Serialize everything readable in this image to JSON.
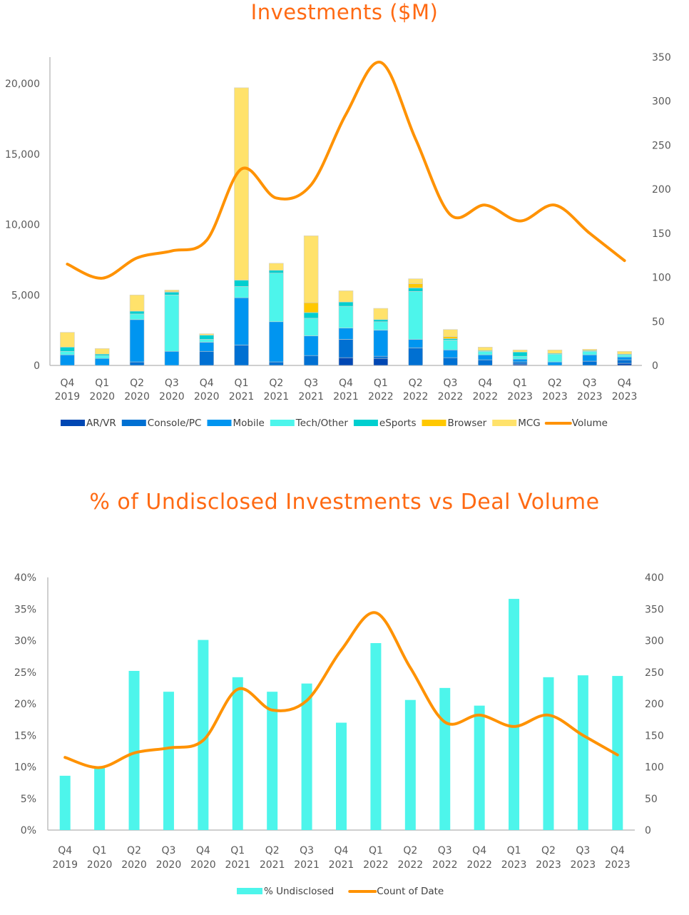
{
  "chart_data": [
    {
      "type": "bar",
      "stacked": true,
      "title": "Investments ($M)",
      "xlabel": "",
      "ylabel": "",
      "categories": [
        "Q4 2019",
        "Q1 2020",
        "Q2 2020",
        "Q3 2020",
        "Q4 2020",
        "Q1 2021",
        "Q2 2021",
        "Q3 2021",
        "Q4 2021",
        "Q1 2022",
        "Q2 2022",
        "Q3 2022",
        "Q4 2022",
        "Q1 2023",
        "Q2 2023",
        "Q3 2023",
        "Q4 2023"
      ],
      "category_lines": [
        [
          "Q4",
          "2019"
        ],
        [
          "Q1",
          "2020"
        ],
        [
          "Q2",
          "2020"
        ],
        [
          "Q3",
          "2020"
        ],
        [
          "Q4",
          "2020"
        ],
        [
          "Q1",
          "2021"
        ],
        [
          "Q2",
          "2021"
        ],
        [
          "Q3",
          "2021"
        ],
        [
          "Q4",
          "2021"
        ],
        [
          "Q1",
          "2022"
        ],
        [
          "Q2",
          "2022"
        ],
        [
          "Q3",
          "2022"
        ],
        [
          "Q4",
          "2022"
        ],
        [
          "Q1",
          "2023"
        ],
        [
          "Q2",
          "2023"
        ],
        [
          "Q3",
          "2023"
        ],
        [
          "Q4",
          "2023"
        ]
      ],
      "ylim": [
        0,
        22000
      ],
      "y_ticks": [
        0,
        5000,
        10000,
        15000,
        20000
      ],
      "y_tick_labels": [
        "0",
        "5,000",
        "10,000",
        "15,000",
        "20,000"
      ],
      "y2lim": [
        0,
        350
      ],
      "y2_ticks": [
        0,
        50,
        100,
        150,
        200,
        250,
        300,
        350
      ],
      "y2_tick_labels": [
        "0",
        "50",
        "100",
        "150",
        "200",
        "250",
        "300",
        "350"
      ],
      "grid": false,
      "legend_position": "bottom",
      "series": [
        {
          "name": "AR/VR",
          "color": "#0047b3",
          "axis": "left",
          "values": [
            0,
            0,
            0,
            0,
            0,
            0,
            0,
            0,
            550,
            500,
            0,
            0,
            0,
            100,
            0,
            0,
            150
          ]
        },
        {
          "name": "Console/PC",
          "color": "#0070d2",
          "axis": "left",
          "values": [
            0,
            0,
            250,
            0,
            1000,
            1450,
            250,
            700,
            1300,
            150,
            1250,
            550,
            400,
            150,
            0,
            300,
            250
          ]
        },
        {
          "name": "Mobile",
          "color": "#0095f0",
          "axis": "left",
          "values": [
            750,
            500,
            3000,
            1000,
            650,
            3350,
            2850,
            1400,
            800,
            1850,
            600,
            550,
            350,
            200,
            250,
            450,
            200
          ]
        },
        {
          "name": "Tech/Other",
          "color": "#4df5eb",
          "axis": "left",
          "values": [
            250,
            200,
            400,
            4000,
            200,
            800,
            3450,
            1250,
            1550,
            600,
            3400,
            700,
            250,
            200,
            550,
            250,
            150
          ]
        },
        {
          "name": "eSports",
          "color": "#00cfcf",
          "axis": "left",
          "values": [
            300,
            100,
            200,
            200,
            300,
            450,
            200,
            400,
            300,
            150,
            250,
            100,
            50,
            300,
            50,
            50,
            50
          ]
        },
        {
          "name": "Browser",
          "color": "#ffc800",
          "axis": "left",
          "values": [
            0,
            0,
            0,
            50,
            0,
            0,
            0,
            700,
            0,
            0,
            300,
            150,
            0,
            0,
            0,
            0,
            0
          ]
        },
        {
          "name": "MCG",
          "color": "#ffe26b",
          "axis": "left",
          "values": [
            1050,
            400,
            1150,
            100,
            100,
            13650,
            500,
            4750,
            800,
            800,
            350,
            500,
            250,
            150,
            250,
            100,
            200
          ]
        },
        {
          "name": "Volume",
          "type": "line",
          "color": "#ff9200",
          "axis": "right",
          "values": [
            115,
            99,
            122,
            130,
            142,
            223,
            190,
            205,
            285,
            344,
            257,
            171,
            182,
            164,
            182,
            150,
            119
          ]
        }
      ]
    },
    {
      "type": "bar",
      "title": "% of Undisclosed Investments vs Deal Volume",
      "xlabel": "",
      "ylabel": "",
      "categories": [
        "Q4 2019",
        "Q1 2020",
        "Q2 2020",
        "Q3 2020",
        "Q4 2020",
        "Q1 2021",
        "Q2 2021",
        "Q3 2021",
        "Q4 2021",
        "Q1 2022",
        "Q2 2022",
        "Q3 2022",
        "Q4 2022",
        "Q1 2023",
        "Q2 2023",
        "Q3 2023",
        "Q4 2023"
      ],
      "category_lines": [
        [
          "Q4",
          "2019"
        ],
        [
          "Q1",
          "2020"
        ],
        [
          "Q2",
          "2020"
        ],
        [
          "Q3",
          "2020"
        ],
        [
          "Q4",
          "2020"
        ],
        [
          "Q1",
          "2021"
        ],
        [
          "Q2",
          "2021"
        ],
        [
          "Q3",
          "2021"
        ],
        [
          "Q4",
          "2021"
        ],
        [
          "Q1",
          "2022"
        ],
        [
          "Q2",
          "2022"
        ],
        [
          "Q3",
          "2022"
        ],
        [
          "Q4",
          "2022"
        ],
        [
          "Q1",
          "2023"
        ],
        [
          "Q2",
          "2023"
        ],
        [
          "Q3",
          "2023"
        ],
        [
          "Q4",
          "2023"
        ]
      ],
      "ylim": [
        0,
        40
      ],
      "y_ticks": [
        0,
        5,
        10,
        15,
        20,
        25,
        30,
        35,
        40
      ],
      "y_tick_labels": [
        "0%",
        "5%",
        "10%",
        "15%",
        "20%",
        "25%",
        "30%",
        "35%",
        "40%"
      ],
      "y2lim": [
        0,
        400
      ],
      "y2_ticks": [
        0,
        50,
        100,
        150,
        200,
        250,
        300,
        350,
        400
      ],
      "y2_tick_labels": [
        "0",
        "50",
        "100",
        "150",
        "200",
        "250",
        "300",
        "350",
        "400"
      ],
      "grid": false,
      "legend_position": "bottom",
      "series": [
        {
          "name": "% Undisclosed",
          "color": "#4df5eb",
          "axis": "left",
          "values": [
            8.6,
            10.0,
            25.2,
            21.9,
            30.1,
            24.2,
            21.9,
            23.2,
            17.0,
            29.6,
            20.6,
            22.5,
            19.7,
            36.6,
            24.2,
            24.5,
            24.4
          ]
        },
        {
          "name": "Count of Date",
          "type": "line",
          "color": "#ff9200",
          "axis": "right",
          "values": [
            115,
            99,
            122,
            130,
            142,
            223,
            190,
            205,
            285,
            344,
            257,
            171,
            182,
            164,
            182,
            150,
            119
          ]
        }
      ]
    }
  ]
}
